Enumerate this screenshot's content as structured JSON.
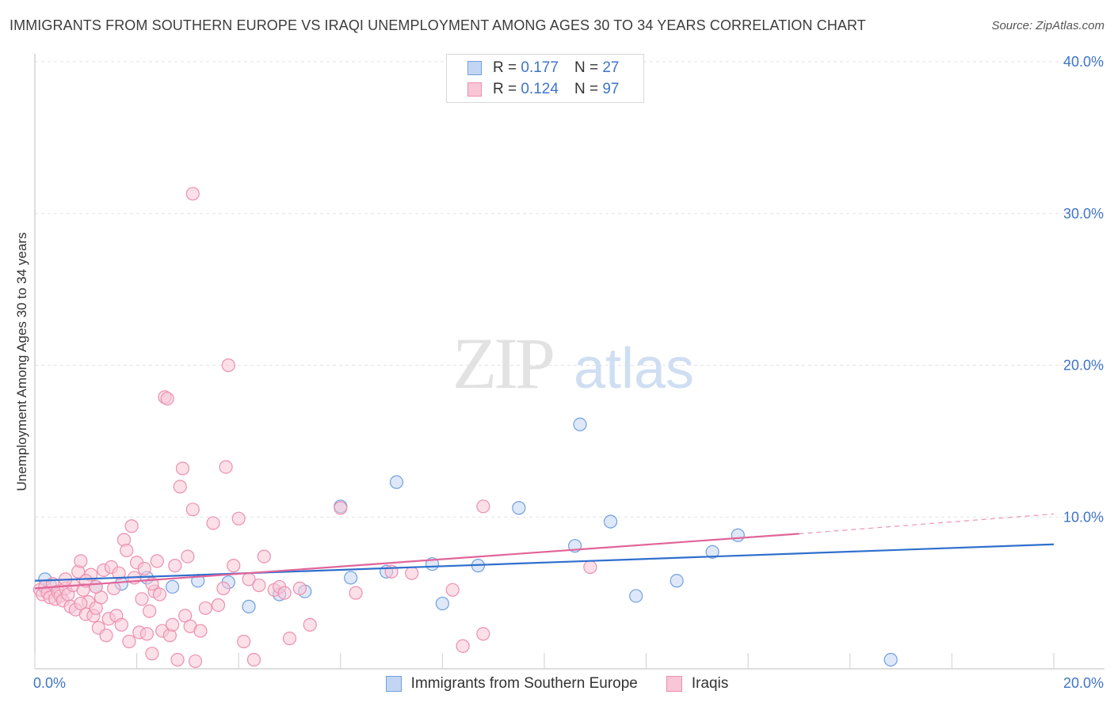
{
  "chart_data": {
    "type": "scatter",
    "title": "IMMIGRANTS FROM SOUTHERN EUROPE VS IRAQI UNEMPLOYMENT AMONG AGES 30 TO 34 YEARS CORRELATION CHART",
    "source": "Source: ZipAtlas.com",
    "watermark": {
      "zip": "ZIP",
      "atlas": "atlas"
    },
    "ylabel": "Unemployment Among Ages 30 to 34 years",
    "xlim": [
      0,
      20
    ],
    "ylim": [
      0,
      40
    ],
    "x_tick_labels": [
      {
        "value": 0,
        "label": "0.0%"
      },
      {
        "value": 20,
        "label": "20.0%"
      }
    ],
    "y_tick_labels": [
      {
        "value": 10,
        "label": "10.0%"
      },
      {
        "value": 20,
        "label": "20.0%"
      },
      {
        "value": 30,
        "label": "30.0%"
      },
      {
        "value": 40,
        "label": "40.0%"
      }
    ],
    "legend": [
      {
        "r_label": "R =",
        "r_value": "0.177",
        "n_label": "N =",
        "n_value": "27"
      },
      {
        "r_label": "R =",
        "r_value": "0.124",
        "n_label": "N =",
        "n_value": "97"
      }
    ],
    "series": [
      {
        "name": "Immigrants from Southern Europe",
        "color": "#6f9fe0",
        "fill": "#c2d6f3",
        "line_color": "#2f6fcc",
        "trend": {
          "x0": 0,
          "y0": 5.8,
          "x1": 20,
          "y1": 8.2
        },
        "points": [
          [
            0.3,
            5.5
          ],
          [
            1.2,
            5.4
          ],
          [
            1.7,
            5.6
          ],
          [
            2.2,
            6.0
          ],
          [
            2.7,
            5.4
          ],
          [
            3.2,
            5.8
          ],
          [
            3.8,
            5.7
          ],
          [
            4.2,
            4.1
          ],
          [
            4.8,
            4.9
          ],
          [
            5.3,
            5.1
          ],
          [
            6.0,
            10.7
          ],
          [
            6.2,
            6.0
          ],
          [
            6.9,
            6.4
          ],
          [
            7.1,
            12.3
          ],
          [
            7.8,
            6.9
          ],
          [
            8.0,
            4.3
          ],
          [
            8.7,
            6.8
          ],
          [
            9.5,
            10.6
          ],
          [
            10.6,
            8.1
          ],
          [
            10.7,
            16.1
          ],
          [
            11.3,
            9.7
          ],
          [
            11.8,
            4.8
          ],
          [
            12.6,
            5.8
          ],
          [
            13.3,
            7.7
          ],
          [
            13.8,
            8.8
          ],
          [
            16.8,
            0.6
          ],
          [
            0.2,
            5.9
          ]
        ]
      },
      {
        "name": "Iraqis",
        "color": "#ec8fb0",
        "fill": "#f8c6d6",
        "line_color": "#e0659a",
        "trend": {
          "x0": 0,
          "y0": 5.3,
          "x1": 15.0,
          "y1": 8.9
        },
        "trend_dashed": {
          "x0": 15.0,
          "y0": 8.9,
          "x1": 20,
          "y1": 10.2
        },
        "points": [
          [
            0.1,
            5.2
          ],
          [
            0.15,
            4.9
          ],
          [
            0.2,
            5.4
          ],
          [
            0.25,
            5.0
          ],
          [
            0.3,
            4.7
          ],
          [
            0.35,
            5.6
          ],
          [
            0.4,
            4.6
          ],
          [
            0.45,
            5.1
          ],
          [
            0.5,
            4.8
          ],
          [
            0.55,
            4.5
          ],
          [
            0.6,
            5.3
          ],
          [
            0.65,
            4.9
          ],
          [
            0.7,
            4.1
          ],
          [
            0.75,
            5.5
          ],
          [
            0.8,
            3.9
          ],
          [
            0.85,
            6.4
          ],
          [
            0.9,
            7.1
          ],
          [
            0.95,
            5.2
          ],
          [
            1.0,
            3.6
          ],
          [
            1.05,
            4.4
          ],
          [
            1.1,
            6.2
          ],
          [
            1.15,
            3.5
          ],
          [
            1.2,
            4.0
          ],
          [
            1.25,
            2.7
          ],
          [
            1.3,
            4.7
          ],
          [
            1.35,
            6.5
          ],
          [
            1.4,
            2.2
          ],
          [
            1.45,
            3.3
          ],
          [
            1.5,
            6.7
          ],
          [
            1.55,
            5.3
          ],
          [
            1.6,
            3.5
          ],
          [
            1.65,
            6.3
          ],
          [
            1.7,
            2.9
          ],
          [
            1.75,
            8.5
          ],
          [
            1.8,
            7.8
          ],
          [
            1.85,
            1.8
          ],
          [
            1.9,
            9.4
          ],
          [
            1.95,
            6.0
          ],
          [
            2.0,
            7.0
          ],
          [
            2.05,
            2.4
          ],
          [
            2.1,
            4.6
          ],
          [
            2.15,
            6.6
          ],
          [
            2.2,
            2.3
          ],
          [
            2.25,
            3.8
          ],
          [
            2.3,
            1.0
          ],
          [
            2.35,
            5.1
          ],
          [
            2.4,
            7.1
          ],
          [
            2.45,
            4.9
          ],
          [
            2.5,
            2.5
          ],
          [
            2.55,
            17.9
          ],
          [
            2.6,
            17.8
          ],
          [
            2.65,
            2.2
          ],
          [
            2.7,
            2.9
          ],
          [
            2.75,
            6.8
          ],
          [
            2.8,
            0.6
          ],
          [
            2.85,
            12.0
          ],
          [
            2.9,
            13.2
          ],
          [
            2.95,
            3.5
          ],
          [
            3.0,
            7.4
          ],
          [
            3.05,
            2.8
          ],
          [
            3.1,
            10.5
          ],
          [
            3.15,
            0.5
          ],
          [
            3.25,
            2.5
          ],
          [
            3.35,
            4.0
          ],
          [
            3.5,
            9.6
          ],
          [
            3.6,
            4.2
          ],
          [
            3.7,
            5.3
          ],
          [
            3.75,
            13.3
          ],
          [
            3.8,
            20.0
          ],
          [
            3.9,
            6.8
          ],
          [
            4.0,
            9.9
          ],
          [
            4.1,
            1.8
          ],
          [
            4.2,
            5.9
          ],
          [
            4.3,
            0.6
          ],
          [
            4.4,
            5.5
          ],
          [
            4.5,
            7.4
          ],
          [
            4.7,
            5.2
          ],
          [
            4.8,
            5.4
          ],
          [
            4.9,
            5.0
          ],
          [
            5.0,
            2.0
          ],
          [
            5.2,
            5.3
          ],
          [
            5.4,
            2.9
          ],
          [
            6.0,
            10.6
          ],
          [
            6.3,
            5.0
          ],
          [
            7.0,
            6.4
          ],
          [
            7.4,
            6.3
          ],
          [
            8.2,
            5.2
          ],
          [
            8.4,
            1.5
          ],
          [
            8.8,
            2.3
          ],
          [
            8.8,
            10.7
          ],
          [
            10.9,
            6.7
          ],
          [
            3.1,
            31.3
          ],
          [
            1.0,
            5.8
          ],
          [
            0.6,
            5.9
          ],
          [
            1.2,
            5.4
          ],
          [
            2.3,
            5.6
          ],
          [
            0.9,
            4.3
          ]
        ]
      }
    ]
  }
}
